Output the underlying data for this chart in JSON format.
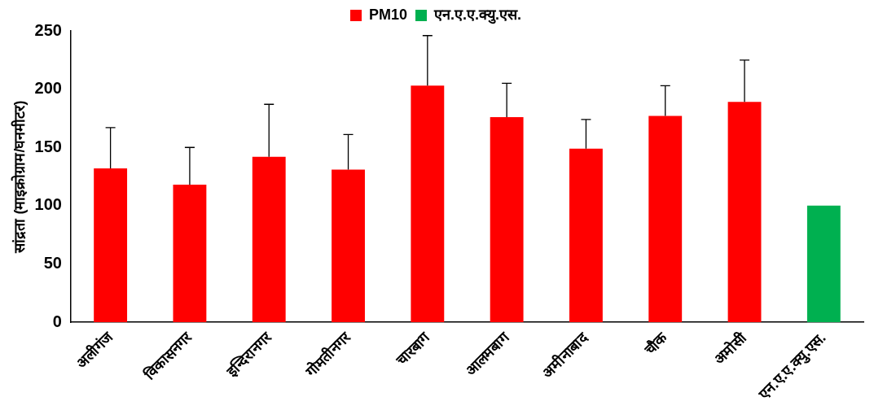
{
  "chart_data": {
    "type": "bar",
    "ylabel": "सांद्रता (माइक्रोग्राम/घनमीटर)",
    "categories": [
      "अलीगंज",
      "विकासनगर",
      "इन्दिरानगर",
      "गोमतीनगर",
      "चारबाग",
      "आलमबाग",
      "अमीनाबाद",
      "चौक",
      "अमोसी",
      "एन.ए.ए.क्यु.एस."
    ],
    "series": [
      {
        "name": "PM10",
        "color": "#ff0000",
        "values": [
          132,
          118,
          142,
          131,
          203,
          176,
          149,
          177,
          189,
          null
        ],
        "errors": [
          [
            132,
            167
          ],
          [
            118,
            150
          ],
          [
            142,
            187
          ],
          [
            131,
            161
          ],
          [
            203,
            246
          ],
          [
            176,
            205
          ],
          [
            149,
            174
          ],
          [
            177,
            203
          ],
          [
            189,
            225
          ],
          null
        ]
      },
      {
        "name": "एन.ए.ए.क्यु.एस.",
        "color": "#00b050",
        "values": [
          null,
          null,
          null,
          null,
          null,
          null,
          null,
          null,
          null,
          100
        ]
      }
    ],
    "ylim": [
      0,
      250
    ],
    "yticks": [
      0,
      50,
      100,
      150,
      200,
      250
    ],
    "grid": false,
    "legend": "top"
  }
}
